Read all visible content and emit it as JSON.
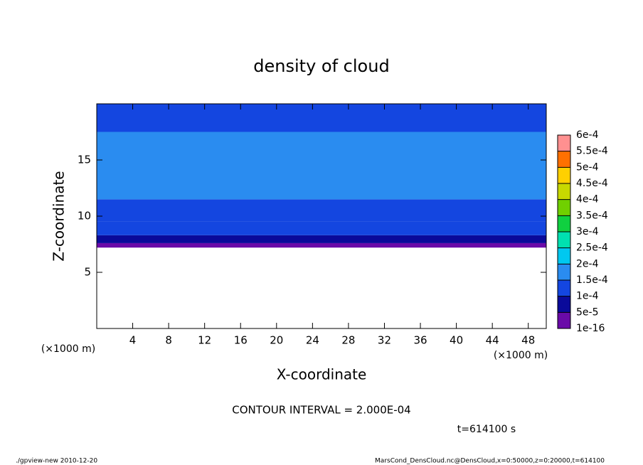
{
  "chart_data": {
    "type": "contour",
    "title": "density of cloud",
    "x_label": "X-coordinate",
    "y_label": "Z-coordinate",
    "x_unit": "(×1000 m)",
    "xlim": [
      0,
      50
    ],
    "xticks": [
      4,
      8,
      12,
      16,
      20,
      24,
      28,
      32,
      36,
      40,
      44,
      48
    ],
    "ylim": [
      0,
      20
    ],
    "yticks": [
      5,
      10,
      15
    ],
    "z_edges": [
      7.2,
      7.6,
      8.3,
      9.5,
      11.5,
      17.5,
      20
    ],
    "values": [
      3e-05,
      7e-05,
      0.00011,
      0.00014,
      0.00017,
      0.00014
    ],
    "levels": [
      {
        "value": 1e-16,
        "label": "1e-16"
      },
      {
        "value": 5e-05,
        "label": "5e-5"
      },
      {
        "value": 0.0001,
        "label": "1e-4"
      },
      {
        "value": 0.00015,
        "label": "1.5e-4"
      },
      {
        "value": 0.0002,
        "label": "2e-4"
      },
      {
        "value": 0.00025,
        "label": "2.5e-4"
      },
      {
        "value": 0.0003,
        "label": "3e-4"
      },
      {
        "value": 0.00035,
        "label": "3.5e-4"
      },
      {
        "value": 0.0004,
        "label": "4e-4"
      },
      {
        "value": 0.00045,
        "label": "4.5e-4"
      },
      {
        "value": 0.0005,
        "label": "5e-4"
      },
      {
        "value": 0.00055,
        "label": "5.5e-4"
      },
      {
        "value": 0.0006,
        "label": "6e-4"
      }
    ],
    "level_colors": [
      "#6a0aa8",
      "#0a0a9a",
      "#1446e0",
      "#2a8cf0",
      "#00c8f0",
      "#00e0b0",
      "#10d040",
      "#70d000",
      "#c8d800",
      "#ffd000",
      "#ff7000",
      "#ff9090"
    ],
    "contour_interval": "CONTOUR INTERVAL = 2.000E-04",
    "time": "t=614100 s",
    "footer_left": "./gpview-new  2010-12-20",
    "footer_right": "MarsCond_DensCloud.nc@DensCloud,x=0:50000,z=0:20000,t=614100"
  }
}
